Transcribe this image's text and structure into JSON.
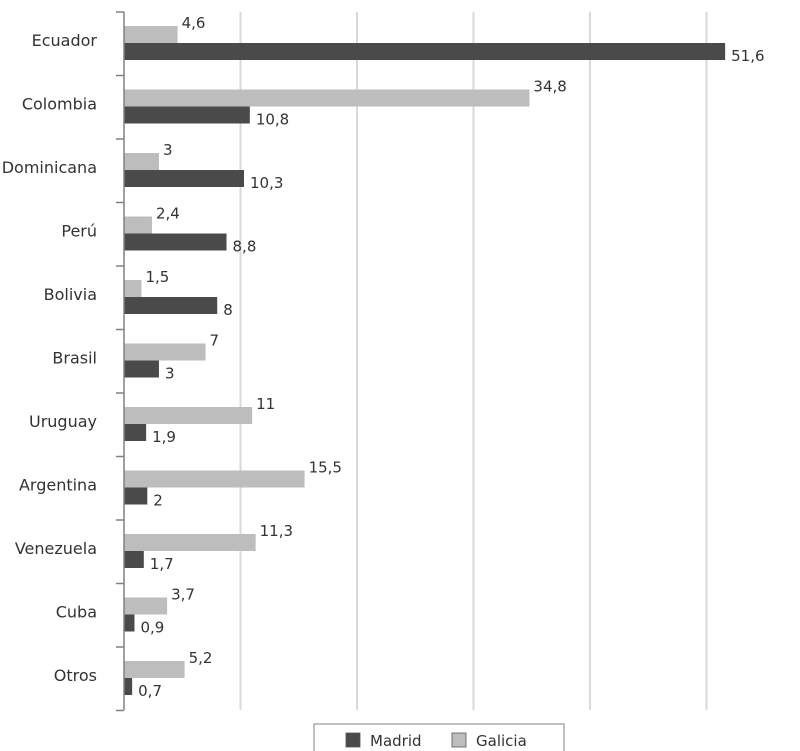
{
  "chart_data": {
    "type": "bar",
    "orientation": "horizontal",
    "categories": [
      "Ecuador",
      "Colombia",
      "Dominicana",
      "Perú",
      "Bolivia",
      "Brasil",
      "Uruguay",
      "Argentina",
      "Venezuela",
      "Cuba",
      "Otros"
    ],
    "series": [
      {
        "name": "Madrid",
        "color": "#4a4a4a",
        "values": [
          51.6,
          10.8,
          10.3,
          8.8,
          8,
          3,
          1.9,
          2,
          1.7,
          0.9,
          0.7
        ],
        "labels": [
          "51,6",
          "10,8",
          "10,3",
          "8,8",
          "8",
          "3",
          "1,9",
          "2",
          "1,7",
          "0,9",
          "0,7"
        ]
      },
      {
        "name": "Galicia",
        "color": "#bdbdbd",
        "values": [
          4.6,
          34.8,
          3,
          2.4,
          1.5,
          7,
          11,
          15.5,
          11.3,
          3.7,
          5.2
        ],
        "labels": [
          "4,6",
          "34,8",
          "3",
          "2,4",
          "1,5",
          "7",
          "11",
          "15,5",
          "11,3",
          "3,7",
          "5,2"
        ]
      }
    ],
    "xlim": [
      0,
      60
    ],
    "grid": true,
    "legend_position": "bottom",
    "title": "",
    "xlabel": "",
    "ylabel": ""
  }
}
